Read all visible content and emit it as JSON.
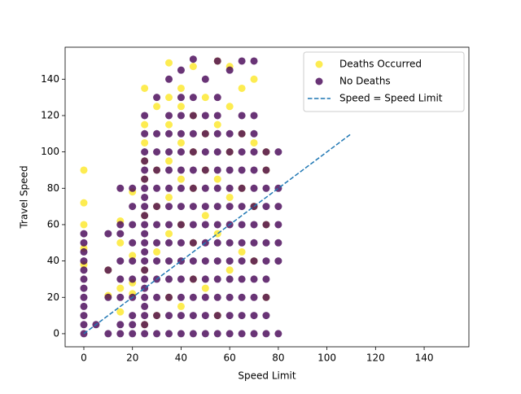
{
  "chart_data": {
    "type": "scatter",
    "xlabel": "Speed Limit",
    "ylabel": "Travel Speed",
    "xlim": [
      -7.7,
      158.4
    ],
    "ylim": [
      -7.2,
      157.6
    ],
    "xticks": [
      0,
      20,
      40,
      60,
      80,
      100,
      120,
      140
    ],
    "yticks": [
      0,
      20,
      40,
      60,
      80,
      100,
      120,
      140
    ],
    "legend": "upper right",
    "series": [
      {
        "name": "Deaths Occurred",
        "type": "scatter",
        "color": "#fde725",
        "x": [
          0,
          0,
          0,
          0,
          0,
          10,
          10,
          15,
          15,
          15,
          15,
          20,
          20,
          20,
          20,
          25,
          25,
          25,
          25,
          25,
          25,
          25,
          25,
          30,
          30,
          30,
          30,
          30,
          35,
          35,
          35,
          35,
          35,
          35,
          35,
          40,
          40,
          40,
          40,
          40,
          40,
          45,
          45,
          45,
          45,
          45,
          45,
          50,
          50,
          50,
          50,
          50,
          55,
          55,
          55,
          55,
          55,
          60,
          60,
          60,
          60,
          60,
          65,
          65,
          65,
          65,
          70,
          70,
          70,
          70,
          75,
          75,
          75,
          75
        ],
        "y": [
          90,
          72,
          60,
          47,
          38,
          21,
          35,
          12,
          25,
          50,
          62,
          22,
          28,
          43,
          78,
          5,
          35,
          65,
          85,
          95,
          105,
          115,
          135,
          10,
          45,
          70,
          90,
          125,
          20,
          55,
          75,
          95,
          115,
          130,
          149,
          15,
          60,
          85,
          105,
          125,
          135,
          30,
          50,
          80,
          100,
          120,
          147,
          25,
          65,
          90,
          110,
          130,
          10,
          55,
          85,
          115,
          150,
          35,
          75,
          100,
          125,
          147,
          45,
          80,
          110,
          135,
          40,
          70,
          105,
          140,
          20,
          60,
          90,
          100
        ]
      },
      {
        "name": "No Deaths",
        "type": "scatter",
        "color": "#440154",
        "x": [
          0,
          0,
          0,
          0,
          0,
          0,
          0,
          0,
          0,
          0,
          0,
          0,
          5,
          10,
          10,
          10,
          10,
          15,
          15,
          15,
          15,
          15,
          15,
          15,
          15,
          20,
          20,
          20,
          20,
          20,
          20,
          20,
          20,
          20,
          20,
          25,
          25,
          25,
          25,
          25,
          25,
          25,
          25,
          25,
          25,
          25,
          25,
          25,
          25,
          25,
          25,
          25,
          25,
          25,
          25,
          25,
          25,
          25,
          30,
          30,
          30,
          30,
          30,
          30,
          30,
          30,
          30,
          30,
          30,
          30,
          30,
          35,
          35,
          35,
          35,
          35,
          35,
          35,
          35,
          35,
          35,
          35,
          35,
          35,
          35,
          40,
          40,
          40,
          40,
          40,
          40,
          40,
          40,
          40,
          40,
          40,
          40,
          40,
          40,
          40,
          45,
          45,
          45,
          45,
          45,
          45,
          45,
          45,
          45,
          45,
          45,
          45,
          45,
          45,
          45,
          50,
          50,
          50,
          50,
          50,
          50,
          50,
          50,
          50,
          50,
          50,
          50,
          50,
          50,
          55,
          55,
          55,
          55,
          55,
          55,
          55,
          55,
          55,
          55,
          55,
          55,
          55,
          55,
          55,
          60,
          60,
          60,
          60,
          60,
          60,
          60,
          60,
          60,
          60,
          60,
          60,
          60,
          65,
          65,
          65,
          65,
          65,
          65,
          65,
          65,
          65,
          65,
          65,
          65,
          65,
          65,
          70,
          70,
          70,
          70,
          70,
          70,
          70,
          70,
          70,
          70,
          70,
          70,
          70,
          70,
          75,
          75,
          75,
          75,
          75,
          75,
          75,
          75,
          75,
          75,
          75,
          80,
          80,
          80,
          80,
          80,
          80,
          80
        ],
        "y": [
          0,
          5,
          10,
          15,
          20,
          25,
          30,
          35,
          40,
          45,
          50,
          55,
          5,
          0,
          20,
          35,
          55,
          0,
          5,
          20,
          30,
          40,
          55,
          60,
          80,
          0,
          5,
          10,
          20,
          30,
          40,
          50,
          60,
          70,
          80,
          0,
          5,
          10,
          15,
          20,
          25,
          30,
          35,
          40,
          45,
          50,
          55,
          60,
          65,
          70,
          75,
          80,
          85,
          90,
          95,
          100,
          110,
          120,
          0,
          10,
          20,
          30,
          40,
          50,
          60,
          70,
          80,
          90,
          100,
          110,
          130,
          0,
          10,
          20,
          30,
          40,
          50,
          60,
          70,
          80,
          90,
          100,
          110,
          120,
          140,
          0,
          10,
          20,
          30,
          40,
          50,
          60,
          70,
          80,
          90,
          100,
          110,
          120,
          130,
          145,
          0,
          10,
          20,
          30,
          40,
          50,
          60,
          70,
          80,
          90,
          100,
          110,
          120,
          130,
          151,
          0,
          10,
          20,
          30,
          40,
          50,
          60,
          70,
          80,
          90,
          100,
          110,
          120,
          140,
          0,
          10,
          20,
          30,
          40,
          50,
          60,
          70,
          80,
          90,
          100,
          110,
          120,
          130,
          150,
          0,
          10,
          20,
          30,
          40,
          50,
          60,
          70,
          80,
          90,
          100,
          110,
          145,
          0,
          10,
          20,
          30,
          40,
          50,
          60,
          70,
          80,
          90,
          100,
          110,
          120,
          150,
          0,
          10,
          20,
          30,
          40,
          50,
          60,
          70,
          80,
          90,
          100,
          110,
          120,
          150,
          0,
          10,
          20,
          30,
          40,
          50,
          60,
          70,
          80,
          90,
          100,
          0,
          40,
          50,
          60,
          70,
          80,
          100
        ]
      },
      {
        "name": "Speed = Speed Limit",
        "type": "line",
        "color": "#1f77b4",
        "dash": "dashed",
        "x": [
          0,
          110
        ],
        "y": [
          0,
          110
        ]
      }
    ]
  }
}
